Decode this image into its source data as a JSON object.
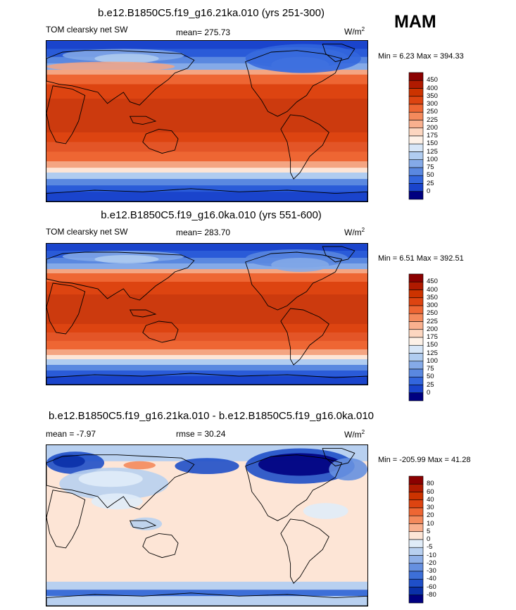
{
  "season": "MAM",
  "panels": [
    {
      "title": "b.e12.B1850C5.f19_g16.21ka.010 (yrs 251-300)",
      "left_label": "TOM clearsky net SW",
      "mean_label": "mean= 275.73",
      "units": "W/m",
      "units_sup": "2",
      "minmax": "Min =   6.23 Max = 394.33"
    },
    {
      "title": "b.e12.B1850C5.f19_g16.0ka.010 (yrs 551-600)",
      "left_label": "TOM clearsky net SW",
      "mean_label": "mean= 283.70",
      "units": "W/m",
      "units_sup": "2",
      "minmax": "Min =   6.51 Max = 392.51"
    },
    {
      "title": "b.e12.B1850C5.f19_g16.21ka.010 - b.e12.B1850C5.f19_g16.0ka.010",
      "left_label": "mean =  -7.97",
      "mean_label": "rmse =  30.24",
      "units": "W/m",
      "units_sup": "2",
      "minmax": "Min = -205.99 Max =  41.28"
    }
  ],
  "colorbars": {
    "absolute": {
      "labels": [
        "450",
        "400",
        "350",
        "300",
        "250",
        "225",
        "200",
        "175",
        "150",
        "125",
        "100",
        "75",
        "50",
        "25",
        "0"
      ],
      "colors": [
        "#8b0000",
        "#b01a00",
        "#cc3300",
        "#dd4411",
        "#ee6633",
        "#f48a5c",
        "#f9b08e",
        "#fcd6c0",
        "#fdf1e7",
        "#d7e6f7",
        "#b0ccf0",
        "#85aae8",
        "#5a88e0",
        "#3366dd",
        "#1a44cc",
        "#000080"
      ]
    },
    "difference": {
      "labels": [
        "80",
        "60",
        "40",
        "30",
        "20",
        "10",
        "5",
        "0",
        "-5",
        "-10",
        "-20",
        "-30",
        "-40",
        "-60",
        "-80"
      ],
      "colors": [
        "#8b0000",
        "#b01a00",
        "#cc3300",
        "#dd4411",
        "#ee6633",
        "#f48a5c",
        "#f9b08e",
        "#fde5d6",
        "#e0ecf8",
        "#b8d0f0",
        "#8fb0e8",
        "#6690e0",
        "#3d6fd8",
        "#1f4fc8",
        "#0a30a8",
        "#000080"
      ]
    }
  }
}
